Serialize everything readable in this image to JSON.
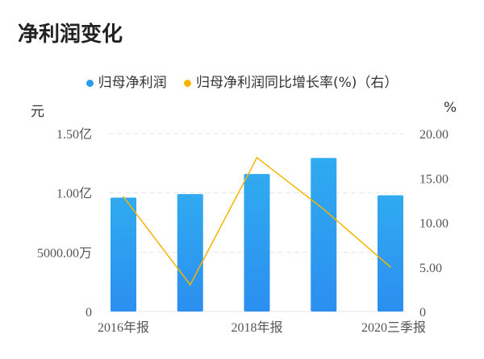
{
  "title": "净利润变化",
  "legend": [
    {
      "label": "归母净利润",
      "color": "#2d9cee"
    },
    {
      "label": "归母净利润同比增长率(%)（右）",
      "color": "#f5b400"
    }
  ],
  "left_unit": "元",
  "right_unit": "%",
  "chart_data": {
    "type": "bar+line",
    "title": "净利润变化",
    "categories": [
      "2016年报",
      "",
      "2018年报",
      "",
      "2020三季报"
    ],
    "left_axis": {
      "unit": "元",
      "ylim": [
        0,
        1.5
      ],
      "ticks": [
        0,
        0.5,
        1.0,
        1.5
      ],
      "tick_labels": [
        "0",
        "5000.00万",
        "1.00亿",
        "1.50亿"
      ],
      "value_unit": "亿"
    },
    "right_axis": {
      "unit": "%",
      "ylim": [
        0,
        20
      ],
      "ticks": [
        0,
        5,
        10,
        15,
        20
      ],
      "tick_labels": [
        "0",
        "5.00",
        "10.00",
        "15.00",
        "20.00"
      ]
    },
    "series": [
      {
        "name": "归母净利润",
        "type": "bar",
        "axis": "left",
        "color": "#2d9cee",
        "values": [
          0.96,
          0.99,
          1.16,
          1.295,
          0.98
        ]
      },
      {
        "name": "归母净利润同比增长率(%)（右）",
        "type": "line",
        "axis": "right",
        "color": "#f5b400",
        "values": [
          12.9,
          3.0,
          17.3,
          11.5,
          5.0
        ]
      }
    ],
    "grid": true,
    "legend_position": "top"
  }
}
